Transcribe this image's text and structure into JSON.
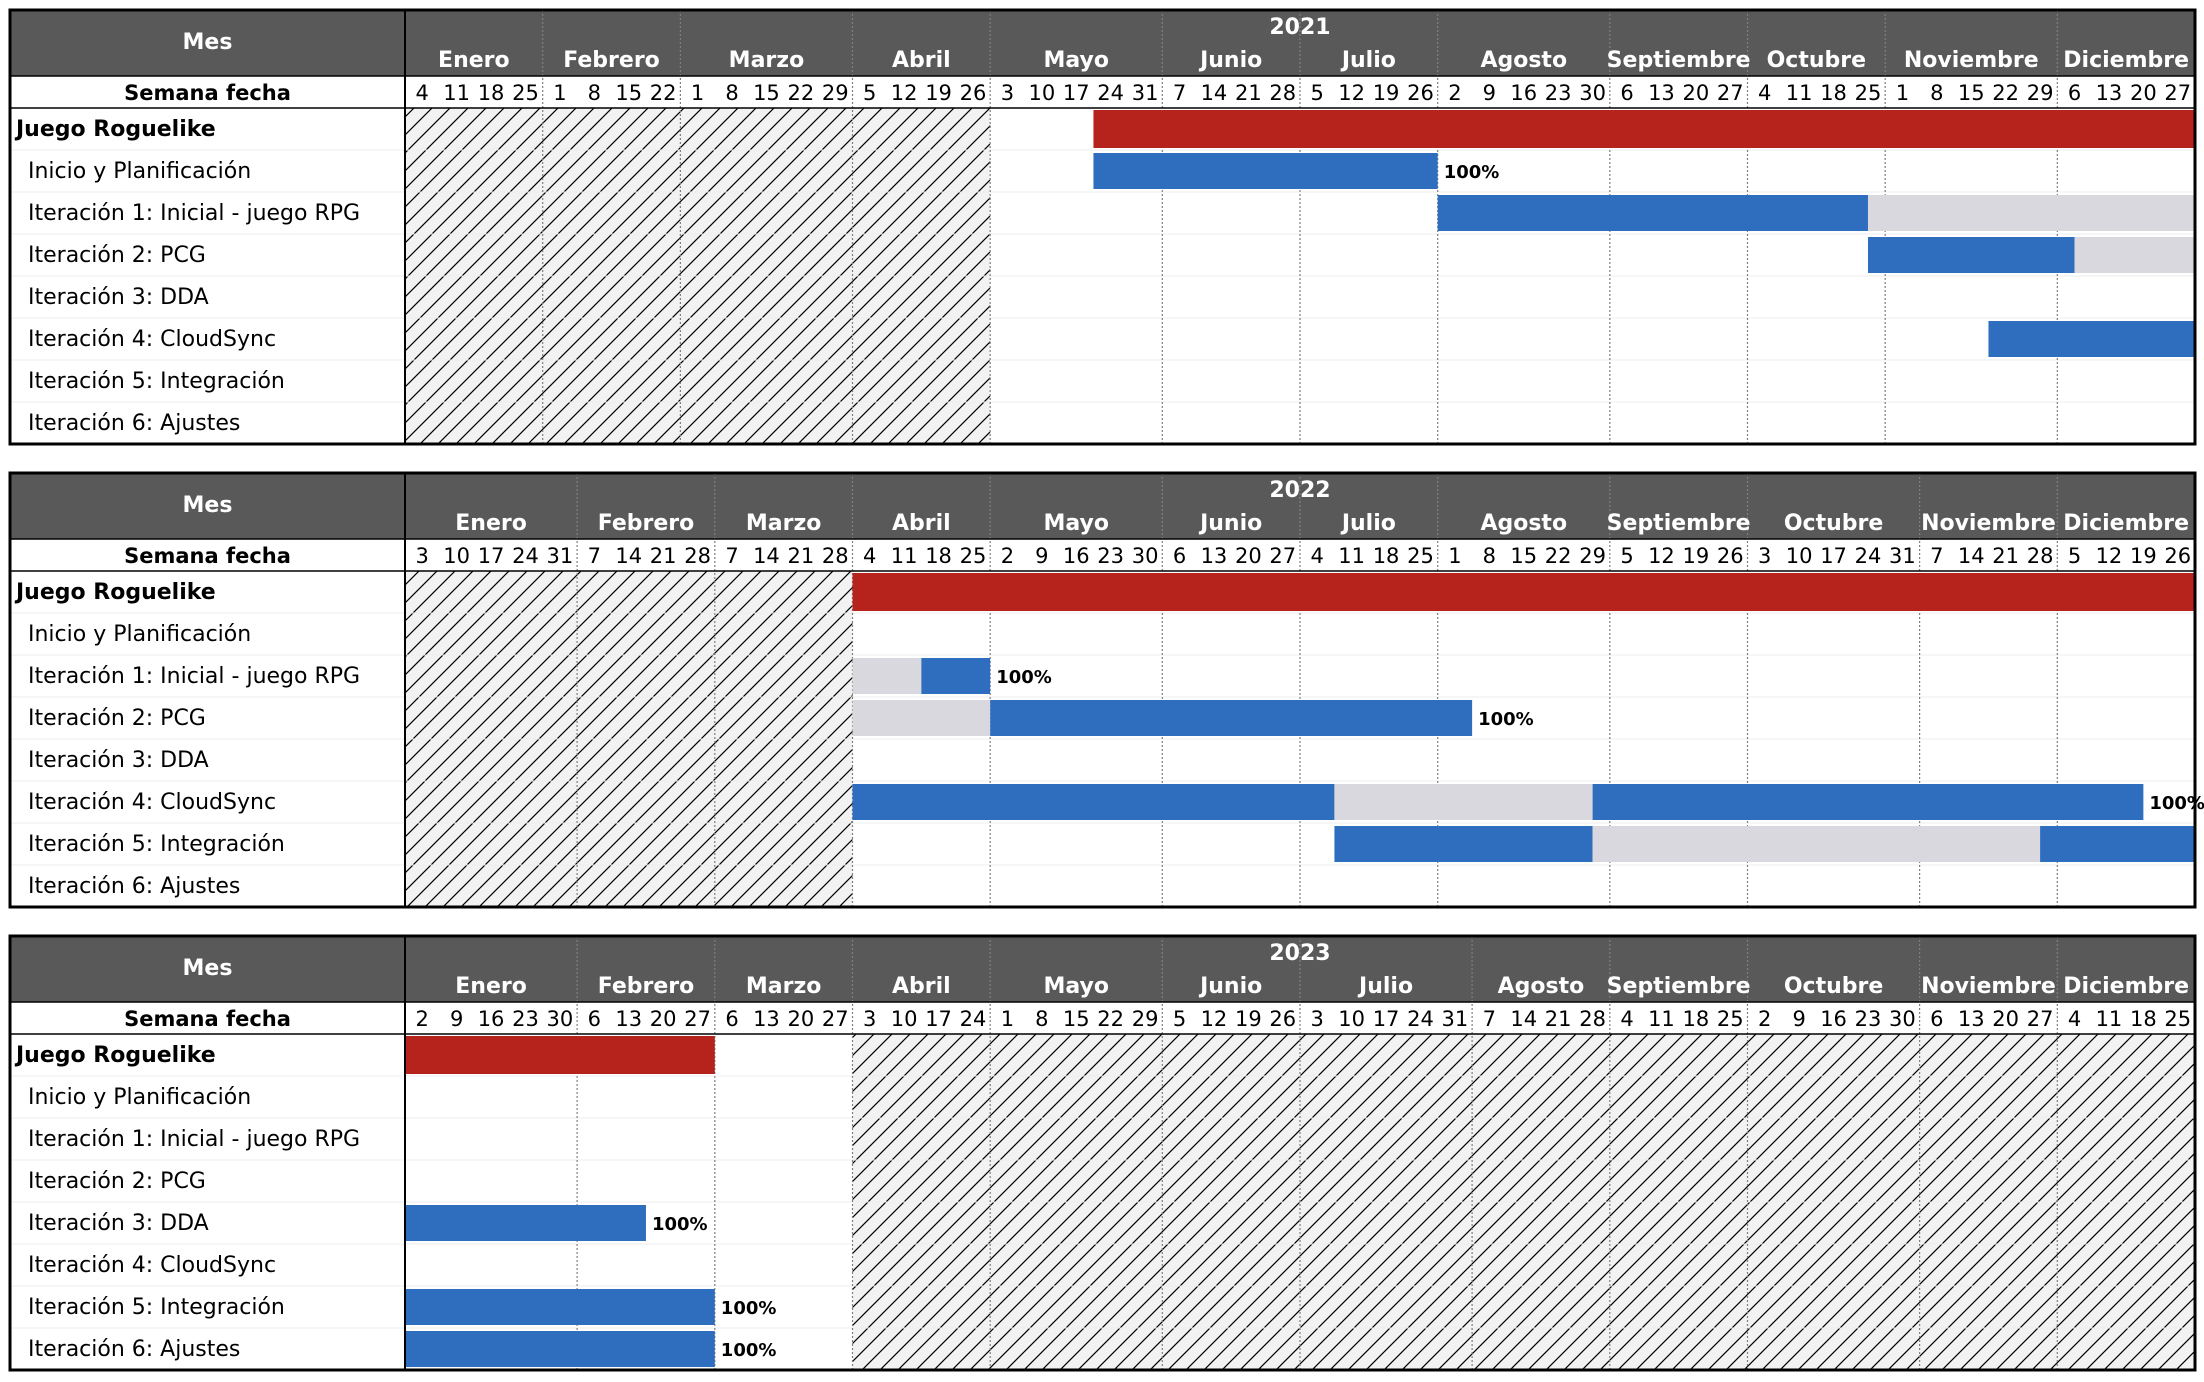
{
  "chart_data": {
    "type": "gantt",
    "title": "Juego Roguelike",
    "row_header": "Mes",
    "week_header": "Semana fecha",
    "colors": {
      "header_bg": "#595959",
      "header_text": "#ffffff",
      "project_bar": "#b5231c",
      "task_bar": "#2f6ebf",
      "pause_bar": "#d9d8de",
      "hatch_bg": "#f2f2f2",
      "hatch_line": "#000000",
      "border": "#000000"
    },
    "tasks": [
      "Juego Roguelike",
      "Inicio y Planificación",
      "Iteración 1: Inicial - juego RPG",
      "Iteración 2: PCG",
      "Iteración 3: DDA",
      "Iteración 4: CloudSync",
      "Iteración 5: Integración",
      "Iteración 6: Ajustes"
    ],
    "panels": [
      {
        "year": "2021",
        "months": [
          "Enero",
          "Febrero",
          "Marzo",
          "Abril",
          "Mayo",
          "Junio",
          "Julio",
          "Agosto",
          "Septiembre",
          "Octubre",
          "Noviembre",
          "Diciembre"
        ],
        "month_weeks": [
          [
            "4",
            "11",
            "18",
            "25"
          ],
          [
            "1",
            "8",
            "15",
            "22"
          ],
          [
            "1",
            "8",
            "15",
            "22",
            "29"
          ],
          [
            "5",
            "12",
            "19",
            "26"
          ],
          [
            "3",
            "10",
            "17",
            "24",
            "31"
          ],
          [
            "7",
            "14",
            "21",
            "28"
          ],
          [
            "5",
            "12",
            "19",
            "26"
          ],
          [
            "2",
            "9",
            "16",
            "23",
            "30"
          ],
          [
            "6",
            "13",
            "20",
            "27"
          ],
          [
            "4",
            "11",
            "18",
            "25"
          ],
          [
            "1",
            "8",
            "15",
            "22",
            "29"
          ],
          [
            "6",
            "13",
            "20",
            "27"
          ]
        ],
        "hatch_weeks": [
          0,
          17
        ],
        "bars": [
          {
            "row": 0,
            "start": 20,
            "end": 52,
            "kind": "project"
          },
          {
            "row": 1,
            "start": 20,
            "end": 30,
            "kind": "task",
            "label": "100%"
          },
          {
            "row": 2,
            "start": 30,
            "end": 42.5,
            "kind": "task"
          },
          {
            "row": 2,
            "start": 42.5,
            "end": 52,
            "kind": "pause"
          },
          {
            "row": 3,
            "start": 42.5,
            "end": 48.5,
            "kind": "task"
          },
          {
            "row": 3,
            "start": 48.5,
            "end": 52,
            "kind": "pause"
          },
          {
            "row": 5,
            "start": 46,
            "end": 52,
            "kind": "task"
          }
        ]
      },
      {
        "year": "2022",
        "months": [
          "Enero",
          "Febrero",
          "Marzo",
          "Abril",
          "Mayo",
          "Junio",
          "Julio",
          "Agosto",
          "Septiembre",
          "Octubre",
          "Noviembre",
          "Diciembre"
        ],
        "month_weeks": [
          [
            "3",
            "10",
            "17",
            "24",
            "31"
          ],
          [
            "7",
            "14",
            "21",
            "28"
          ],
          [
            "7",
            "14",
            "21",
            "28"
          ],
          [
            "4",
            "11",
            "18",
            "25"
          ],
          [
            "2",
            "9",
            "16",
            "23",
            "30"
          ],
          [
            "6",
            "13",
            "20",
            "27"
          ],
          [
            "4",
            "11",
            "18",
            "25"
          ],
          [
            "1",
            "8",
            "15",
            "22",
            "29"
          ],
          [
            "5",
            "12",
            "19",
            "26"
          ],
          [
            "3",
            "10",
            "17",
            "24",
            "31"
          ],
          [
            "7",
            "14",
            "21",
            "28"
          ],
          [
            "5",
            "12",
            "19",
            "26"
          ]
        ],
        "hatch_weeks": [
          0,
          13
        ],
        "bars": [
          {
            "row": 0,
            "start": 13,
            "end": 52,
            "kind": "project"
          },
          {
            "row": 2,
            "start": 13,
            "end": 15,
            "kind": "pause"
          },
          {
            "row": 2,
            "start": 15,
            "end": 17,
            "kind": "task",
            "label": "100%"
          },
          {
            "row": 3,
            "start": 13,
            "end": 17,
            "kind": "pause"
          },
          {
            "row": 3,
            "start": 17,
            "end": 31,
            "kind": "task",
            "label": "100%"
          },
          {
            "row": 5,
            "start": 13,
            "end": 27,
            "kind": "task"
          },
          {
            "row": 5,
            "start": 27,
            "end": 34.5,
            "kind": "pause"
          },
          {
            "row": 5,
            "start": 34.5,
            "end": 50.5,
            "kind": "task",
            "label": "100%"
          },
          {
            "row": 6,
            "start": 27,
            "end": 34.5,
            "kind": "task"
          },
          {
            "row": 6,
            "start": 34.5,
            "end": 47.5,
            "kind": "pause"
          },
          {
            "row": 6,
            "start": 47.5,
            "end": 52,
            "kind": "task"
          }
        ]
      },
      {
        "year": "2023",
        "months": [
          "Enero",
          "Febrero",
          "Marzo",
          "Abril",
          "Mayo",
          "Junio",
          "Julio",
          "Agosto",
          "Septiembre",
          "Octubre",
          "Noviembre",
          "Diciembre"
        ],
        "month_weeks": [
          [
            "2",
            "9",
            "16",
            "23",
            "30"
          ],
          [
            "6",
            "13",
            "20",
            "27"
          ],
          [
            "6",
            "13",
            "20",
            "27"
          ],
          [
            "3",
            "10",
            "17",
            "24"
          ],
          [
            "1",
            "8",
            "15",
            "22",
            "29"
          ],
          [
            "5",
            "12",
            "19",
            "26"
          ],
          [
            "3",
            "10",
            "17",
            "24",
            "31"
          ],
          [
            "7",
            "14",
            "21",
            "28"
          ],
          [
            "4",
            "11",
            "18",
            "25"
          ],
          [
            "2",
            "9",
            "16",
            "23",
            "30"
          ],
          [
            "6",
            "13",
            "20",
            "27"
          ],
          [
            "4",
            "11",
            "18",
            "25"
          ]
        ],
        "hatch_weeks": [
          13,
          52
        ],
        "bars": [
          {
            "row": 0,
            "start": 0,
            "end": 9,
            "kind": "project"
          },
          {
            "row": 4,
            "start": 0,
            "end": 7,
            "kind": "task",
            "label": "100%"
          },
          {
            "row": 6,
            "start": 0,
            "end": 9,
            "kind": "task",
            "label": "100%"
          },
          {
            "row": 7,
            "start": 0,
            "end": 9,
            "kind": "task",
            "label": "100%"
          }
        ]
      }
    ]
  }
}
